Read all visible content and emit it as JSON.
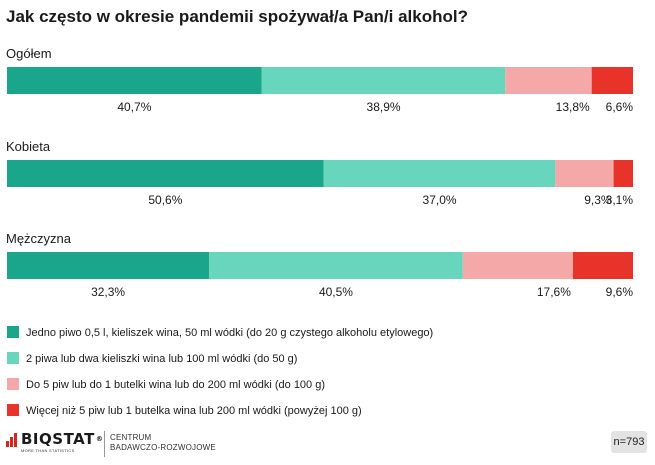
{
  "chart_data": {
    "type": "bar",
    "orientation": "horizontal",
    "stacked": true,
    "title": "Jak często w okresie pandemii spożywał/a Pan/i alkohol?",
    "groups": [
      {
        "label": "Ogółem",
        "values": [
          40.7,
          38.9,
          13.8,
          6.6
        ],
        "value_labels": [
          "40,7%",
          "38,9%",
          "13,8%",
          "6,6%"
        ]
      },
      {
        "label": "Kobieta",
        "values": [
          50.6,
          37.0,
          9.3,
          3.1
        ],
        "value_labels": [
          "50,6%",
          "37,0%",
          "9,3%",
          "3,1%"
        ]
      },
      {
        "label": "Mężczyzna",
        "values": [
          32.3,
          40.5,
          17.6,
          9.6
        ],
        "value_labels": [
          "32,3%",
          "40,5%",
          "17,6%",
          "9,6%"
        ]
      }
    ],
    "series": [
      {
        "name": "Jedno piwo 0,5 l, kieliszek wina, 50 ml wódki (do 20 g czystego alkoholu etylowego)",
        "color": "#1aa68a"
      },
      {
        "name": "2 piwa lub dwa kieliszki wina lub 100 ml wódki (do 50 g)",
        "color": "#67d6bd"
      },
      {
        "name": "Do 5 piw lub do 1 butelki wina lub do 200 ml wódki (do 100 g)",
        "color": "#f4a8a8"
      },
      {
        "name": "Więcej niż 5 piw lub 1 butelka wina lub 200 ml wódki (powyżej 100 g)",
        "color": "#e8332a"
      }
    ],
    "legend": "bottom",
    "grid": false
  },
  "footer": {
    "logo": "BIQSTAT",
    "logo_tagline": "MORE THAN STATISTICS",
    "centrum_line1": "CENTRUM",
    "centrum_line2": "BADAWCZO-ROZWOJOWE",
    "sample": "n=793"
  }
}
